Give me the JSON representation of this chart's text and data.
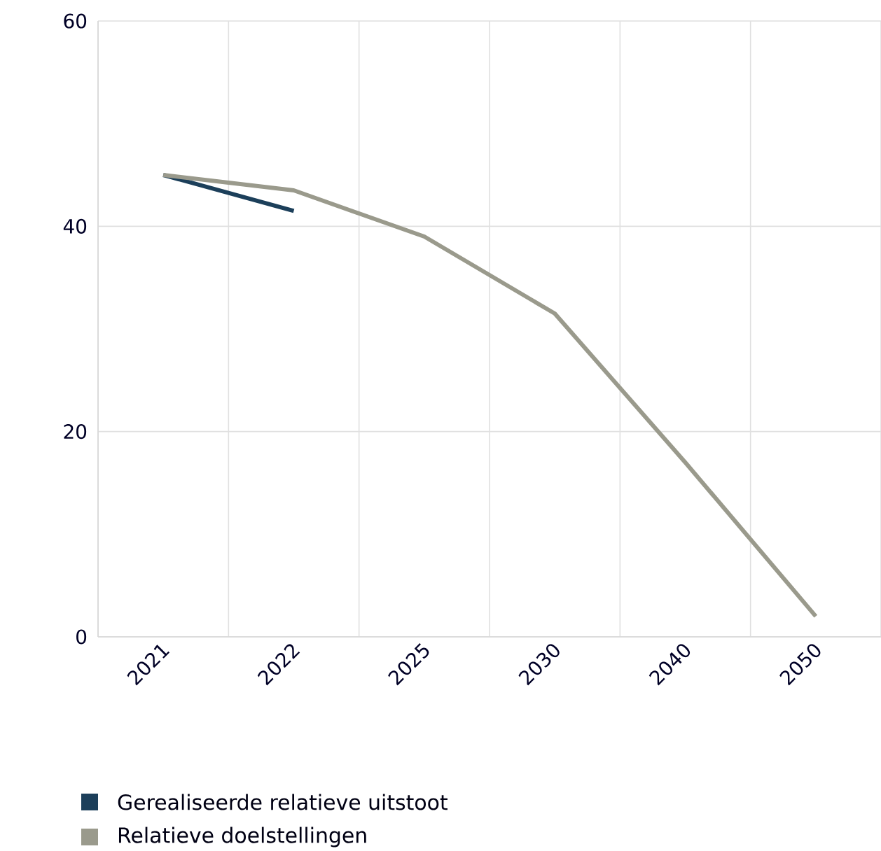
{
  "chart_data": {
    "type": "line",
    "categories": [
      "2021",
      "2022",
      "2025",
      "2030",
      "2040",
      "2050"
    ],
    "series": [
      {
        "name": "Gerealiseerde relatieve uitstoot",
        "color": "#1c3f5a",
        "values": [
          45,
          41.5,
          null,
          null,
          null,
          null
        ]
      },
      {
        "name": "Relatieve doelstellingen",
        "color": "#9a9a8c",
        "values": [
          45,
          43.5,
          39,
          31.5,
          17,
          2
        ]
      }
    ],
    "ylim": [
      0,
      60
    ],
    "yticks": [
      0,
      20,
      40,
      60
    ],
    "grid": true,
    "legend": "bottom left",
    "marker": "none",
    "line_style": "solid"
  }
}
